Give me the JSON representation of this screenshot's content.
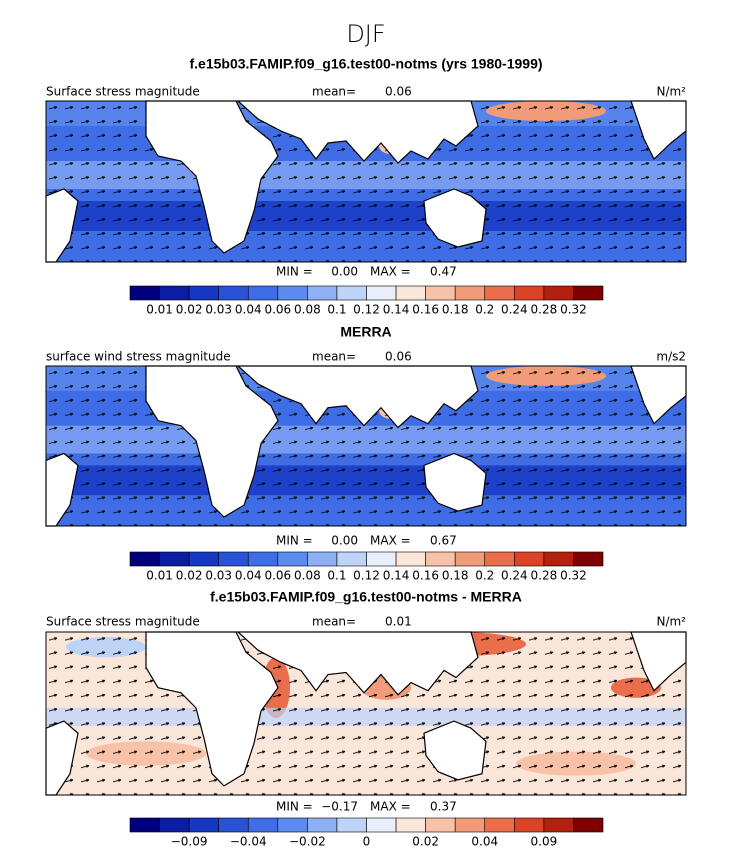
{
  "title": "DJF",
  "colorbar_colors": [
    "#00007f",
    "#0b1ea3",
    "#1537c2",
    "#2a52d6",
    "#3f6de6",
    "#5c8aef",
    "#8eb0f5",
    "#bdd3f8",
    "#e9f0fb",
    "#fbe6da",
    "#f7c2a8",
    "#f29b78",
    "#ea6e4b",
    "#d94427",
    "#b3200f",
    "#7f0000"
  ],
  "panels": [
    {
      "title": "f.e15b03.FAMIP.f09_g16.test00-notms (yrs 1980-1999)",
      "variable": "Surface stress magnitude",
      "mean_label": "mean=",
      "mean": "0.06",
      "units": "N/m²",
      "min_label": "MIN =",
      "min": "0.00",
      "max_label": "MAX =",
      "max": "0.47",
      "colorbar_labels": [
        "0.01",
        "0.02",
        "0.03",
        "0.04",
        "0.06",
        "0.08",
        "0.1",
        "0.12",
        "0.14",
        "0.16",
        "0.18",
        "0.2",
        "0.24",
        "0.28",
        "0.32"
      ]
    },
    {
      "title": "MERRA",
      "variable": "surface wind stress magnitude",
      "mean_label": "mean=",
      "mean": "0.06",
      "units": "m/s2",
      "min_label": "MIN =",
      "min": "0.00",
      "max_label": "MAX =",
      "max": "0.67",
      "colorbar_labels": [
        "0.01",
        "0.02",
        "0.03",
        "0.04",
        "0.06",
        "0.08",
        "0.1",
        "0.12",
        "0.14",
        "0.16",
        "0.18",
        "0.2",
        "0.24",
        "0.28",
        "0.32"
      ]
    },
    {
      "title": "f.e15b03.FAMIP.f09_g16.test00-notms - MERRA",
      "variable": "Surface stress magnitude",
      "mean_label": "mean=",
      "mean": "0.01",
      "units": "N/m²",
      "min_label": "MIN =",
      "min": "−0.17",
      "max_label": "MAX =",
      "max": "0.37",
      "colorbar_labels": [
        "−0.09",
        "−0.04",
        "−0.02",
        "0",
        "0.02",
        "0.04",
        "0.09"
      ]
    }
  ]
}
